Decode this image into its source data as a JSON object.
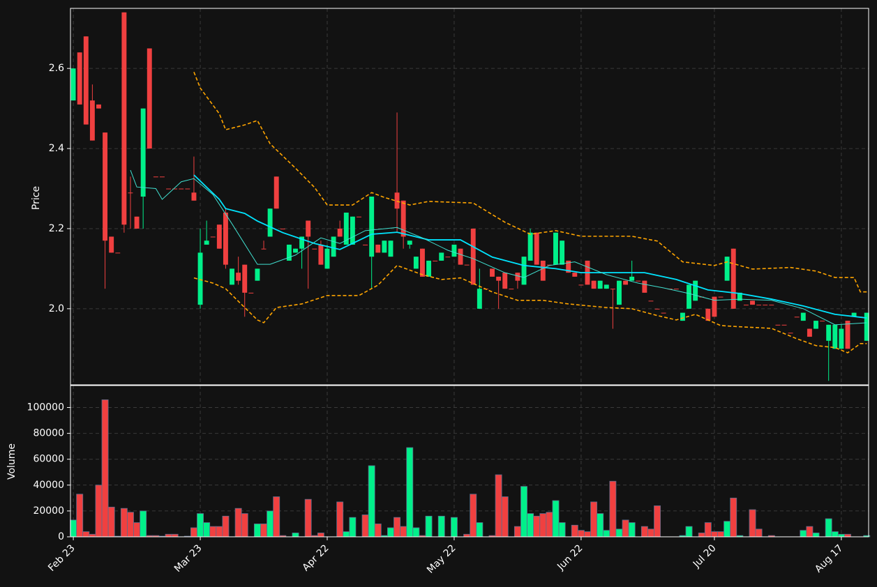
{
  "chart_data": {
    "type": "candlestick",
    "ylabel": "Price",
    "volume_ylabel": "Volume",
    "xlim": [
      -0.45,
      125.3
    ],
    "xticks": [
      {
        "value": 0,
        "label": "Feb 23"
      },
      {
        "value": 20,
        "label": "Mar 23"
      },
      {
        "value": 40,
        "label": "Apr 22"
      },
      {
        "value": 60,
        "label": "May 22"
      },
      {
        "value": 80,
        "label": "Jun 22"
      },
      {
        "value": 101,
        "label": "Jul 20"
      },
      {
        "value": 121,
        "label": "Aug 17"
      }
    ],
    "ylim": [
      1.81,
      2.75
    ],
    "yticks": [
      {
        "value": 2,
        "label": "2.0"
      },
      2.2,
      2.4,
      2.6
    ],
    "volume_ylim": [
      0,
      117000
    ],
    "volume_yticks": [
      0,
      20000,
      40000,
      60000,
      80000,
      100000
    ],
    "grid": true,
    "up_color": "#00f08a",
    "down_color": "#f04040",
    "open": [
      2.52,
      2.64,
      2.68,
      2.52,
      2.51,
      2.44,
      2.18,
      2.14,
      2.74,
      2.29,
      2.23,
      2.28,
      2.65,
      2.33,
      2.33,
      2.3,
      2.3,
      2.3,
      2.3,
      2.29,
      2.01,
      2.16,
      2.18,
      2.21,
      2.24,
      2.06,
      2.09,
      2.11,
      2.04,
      2.07,
      2.15,
      2.18,
      2.33,
      2.2,
      2.12,
      2.14,
      2.15,
      2.22,
      2.15,
      2.16,
      2.1,
      2.13,
      2.2,
      2.16,
      2.16,
      2.23,
      2.16,
      2.13,
      2.16,
      2.14,
      2.13,
      2.29,
      2.27,
      2.16,
      2.1,
      2.15,
      2.08,
      2.12,
      2.12,
      2.13,
      2.13,
      2.15,
      2.11,
      2.2,
      2.0,
      2.05,
      2.1,
      2.08,
      2.09,
      2.05,
      2.09,
      2.06,
      2.12,
      2.19,
      2.12,
      2.11,
      2.11,
      2.11,
      2.12,
      2.09,
      2.06,
      2.12,
      2.07,
      2.05,
      2.05,
      2.05,
      2.01,
      2.07,
      2.07,
      2.07,
      2.07,
      2.02,
      2.0,
      1.99,
      2.05,
      2.05,
      1.97,
      2.0,
      2.02,
      2.03,
      2.0,
      2.03,
      2.03,
      2.07,
      2.15,
      2.02,
      2.01,
      2.02,
      2.01,
      2.01,
      2.01,
      1.96,
      1.96,
      1.94,
      1.98,
      1.97,
      1.95,
      1.95,
      1.97,
      1.92,
      1.9,
      1.9,
      1.97,
      1.98,
      1.98,
      1.92
    ],
    "high": [
      2.6,
      2.64,
      2.68,
      2.56,
      2.51,
      2.44,
      2.18,
      2.14,
      2.74,
      2.33,
      2.23,
      2.5,
      2.65,
      2.33,
      2.33,
      2.3,
      2.3,
      2.3,
      2.3,
      2.38,
      2.2,
      2.22,
      2.18,
      2.21,
      2.25,
      2.1,
      2.13,
      2.11,
      2.04,
      2.1,
      2.17,
      2.25,
      2.33,
      2.2,
      2.16,
      2.15,
      2.18,
      2.22,
      2.15,
      2.17,
      2.16,
      2.18,
      2.22,
      2.24,
      2.23,
      2.23,
      2.16,
      2.28,
      2.16,
      2.17,
      2.17,
      2.49,
      2.27,
      2.17,
      2.13,
      2.15,
      2.12,
      2.12,
      2.14,
      2.13,
      2.16,
      2.15,
      2.11,
      2.2,
      2.1,
      2.05,
      2.1,
      2.08,
      2.09,
      2.05,
      2.09,
      2.13,
      2.2,
      2.19,
      2.12,
      2.11,
      2.19,
      2.17,
      2.12,
      2.09,
      2.06,
      2.12,
      2.07,
      2.07,
      2.06,
      2.05,
      2.07,
      2.07,
      2.12,
      2.07,
      2.07,
      2.02,
      2.0,
      1.99,
      2.05,
      2.05,
      1.99,
      2.06,
      2.07,
      2.03,
      2.0,
      2.03,
      2.03,
      2.13,
      2.15,
      2.04,
      2.01,
      2.02,
      2.01,
      2.01,
      2.01,
      1.96,
      1.96,
      1.94,
      1.98,
      1.99,
      1.95,
      1.97,
      1.97,
      1.96,
      1.96,
      1.96,
      1.97,
      1.99,
      1.98,
      1.99
    ],
    "low": [
      2.52,
      2.51,
      2.46,
      2.42,
      2.5,
      2.05,
      2.14,
      2.14,
      2.19,
      2.2,
      2.2,
      2.2,
      2.4,
      2.33,
      2.33,
      2.3,
      2.3,
      2.3,
      2.3,
      2.27,
      2.0,
      2.16,
      2.18,
      2.15,
      2.1,
      2.06,
      2.06,
      1.98,
      2.04,
      2.07,
      2.15,
      2.18,
      2.25,
      2.2,
      2.12,
      2.14,
      2.1,
      2.05,
      2.15,
      2.11,
      2.1,
      2.13,
      2.18,
      2.16,
      2.16,
      2.23,
      2.16,
      2.05,
      2.14,
      2.14,
      2.13,
      2.19,
      2.15,
      2.15,
      2.1,
      2.08,
      2.08,
      2.12,
      2.12,
      2.13,
      2.13,
      2.11,
      2.11,
      2.06,
      2.0,
      2.05,
      2.08,
      2.0,
      2.05,
      2.05,
      2.05,
      2.06,
      2.12,
      2.11,
      2.07,
      2.11,
      2.11,
      2.11,
      2.09,
      2.08,
      2.06,
      2.06,
      2.05,
      2.05,
      2.05,
      1.95,
      2.01,
      2.06,
      2.07,
      2.07,
      2.04,
      2.02,
      2.0,
      1.99,
      2.05,
      2.05,
      1.97,
      2.0,
      2.02,
      2.03,
      1.97,
      1.98,
      2.03,
      2.07,
      2.0,
      2.02,
      2.01,
      2.01,
      2.01,
      2.01,
      2.01,
      1.96,
      1.96,
      1.94,
      1.98,
      1.97,
      1.93,
      1.95,
      1.97,
      1.82,
      1.9,
      1.9,
      1.9,
      1.98,
      1.98,
      1.92
    ],
    "close": [
      2.6,
      2.51,
      2.46,
      2.42,
      2.5,
      2.17,
      2.14,
      2.14,
      2.21,
      2.29,
      2.2,
      2.5,
      2.4,
      2.33,
      2.33,
      2.3,
      2.3,
      2.3,
      2.3,
      2.27,
      2.14,
      2.17,
      2.18,
      2.15,
      2.11,
      2.1,
      2.07,
      2.04,
      2.04,
      2.1,
      2.15,
      2.25,
      2.25,
      2.2,
      2.16,
      2.15,
      2.18,
      2.18,
      2.15,
      2.11,
      2.15,
      2.18,
      2.18,
      2.24,
      2.23,
      2.23,
      2.16,
      2.28,
      2.14,
      2.17,
      2.17,
      2.25,
      2.18,
      2.17,
      2.13,
      2.08,
      2.12,
      2.12,
      2.14,
      2.13,
      2.16,
      2.11,
      2.11,
      2.06,
      2.05,
      2.05,
      2.08,
      2.07,
      2.05,
      2.05,
      2.07,
      2.13,
      2.19,
      2.11,
      2.07,
      2.11,
      2.19,
      2.17,
      2.09,
      2.08,
      2.06,
      2.06,
      2.05,
      2.07,
      2.06,
      2.05,
      2.07,
      2.06,
      2.08,
      2.07,
      2.04,
      2.02,
      2.0,
      1.99,
      2.05,
      2.05,
      1.99,
      2.06,
      2.07,
      2.03,
      1.97,
      1.98,
      2.03,
      2.13,
      2.0,
      2.04,
      2.01,
      2.01,
      2.01,
      2.01,
      2.01,
      1.96,
      1.96,
      1.94,
      1.98,
      1.99,
      1.93,
      1.97,
      1.97,
      1.96,
      1.96,
      1.95,
      1.9,
      1.99,
      1.98,
      1.99
    ],
    "volume": [
      13000,
      33000,
      4000,
      2000,
      40000,
      106000,
      23000,
      500,
      22000,
      19000,
      11000,
      20000,
      1000,
      1000,
      500,
      2000,
      2000,
      0,
      500,
      7000,
      18000,
      11000,
      8000,
      8000,
      16000,
      0,
      22000,
      18000,
      0,
      10000,
      10000,
      20000,
      31000,
      1000,
      0,
      3000,
      0,
      29000,
      1000,
      3000,
      0,
      0,
      27000,
      4000,
      15000,
      0,
      17000,
      55000,
      10000,
      1000,
      7000,
      15000,
      8000,
      69000,
      7000,
      1000,
      16000,
      0,
      16000,
      0,
      15000,
      0,
      2000,
      33000,
      11000,
      0,
      1000,
      48000,
      31000,
      0,
      8000,
      39000,
      18000,
      16000,
      18000,
      19000,
      28000,
      11000,
      0,
      9000,
      5000,
      4000,
      27000,
      18000,
      5000,
      43000,
      6000,
      13000,
      11000,
      0,
      8000,
      6000,
      24000,
      0,
      0,
      0,
      1000,
      8000,
      0,
      3000,
      11000,
      4000,
      4000,
      12000,
      30000,
      1000,
      0,
      21000,
      6000,
      0,
      1000,
      0,
      0,
      0,
      0,
      5000,
      8000,
      3000,
      0,
      14000,
      4000,
      2000,
      2000,
      0,
      0,
      1000
    ],
    "lines": [
      {
        "color": "#00e5ff",
        "style": "solid",
        "x": [
          19,
          23,
          24,
          27,
          29,
          33,
          38,
          42,
          47,
          51,
          56,
          61,
          66,
          71,
          76,
          80,
          85,
          90,
          95,
          100,
          105,
          110,
          115,
          120,
          125
        ],
        "values": [
          2.334,
          2.273,
          2.25,
          2.238,
          2.219,
          2.19,
          2.163,
          2.148,
          2.186,
          2.191,
          2.172,
          2.172,
          2.129,
          2.108,
          2.1,
          2.09,
          2.09,
          2.09,
          2.073,
          2.047,
          2.038,
          2.024,
          2.007,
          1.986,
          1.977
        ]
      },
      {
        "color": "#40e0d0",
        "style": "solid",
        "x": [
          9,
          10,
          13,
          14,
          17,
          19,
          22,
          25,
          29,
          31,
          35,
          39,
          42,
          46,
          51,
          55,
          59,
          63,
          68,
          71,
          75,
          79,
          84,
          89,
          93,
          97,
          101,
          105,
          110,
          115,
          120,
          125
        ],
        "values": [
          2.346,
          2.304,
          2.3,
          2.273,
          2.317,
          2.325,
          2.285,
          2.212,
          2.111,
          2.111,
          2.134,
          2.177,
          2.163,
          2.195,
          2.203,
          2.177,
          2.146,
          2.125,
          2.09,
          2.078,
          2.108,
          2.117,
          2.085,
          2.064,
          2.052,
          2.038,
          2.021,
          2.024,
          2.021,
          2.0,
          1.96,
          1.965
        ]
      },
      {
        "color": "#ffa500",
        "style": "dashed",
        "x": [
          19,
          20,
          23,
          24,
          27,
          29,
          31,
          35,
          38,
          40,
          44,
          47,
          49,
          53,
          56,
          63,
          68,
          72,
          76,
          80,
          88,
          92,
          96,
          101,
          103,
          107,
          113,
          117,
          120,
          123,
          124,
          125
        ],
        "values": [
          2.591,
          2.551,
          2.487,
          2.447,
          2.459,
          2.47,
          2.412,
          2.351,
          2.303,
          2.259,
          2.259,
          2.29,
          2.278,
          2.259,
          2.268,
          2.264,
          2.216,
          2.186,
          2.195,
          2.181,
          2.181,
          2.169,
          2.117,
          2.108,
          2.117,
          2.099,
          2.103,
          2.094,
          2.078,
          2.078,
          2.042,
          2.042
        ]
      },
      {
        "color": "#ffa500",
        "style": "dashed",
        "x": [
          19,
          22,
          24,
          27,
          29,
          30,
          32,
          36,
          40,
          45,
          48,
          51,
          55,
          58,
          61,
          66,
          70,
          74,
          78,
          84,
          88,
          92,
          95,
          98,
          102,
          105,
          110,
          114,
          117,
          120,
          122,
          124,
          125
        ],
        "values": [
          2.077,
          2.064,
          2.05,
          2.003,
          1.972,
          1.965,
          2.003,
          2.012,
          2.033,
          2.033,
          2.059,
          2.108,
          2.085,
          2.073,
          2.077,
          2.042,
          2.021,
          2.021,
          2.012,
          2.003,
          2.0,
          1.983,
          1.972,
          1.986,
          1.958,
          1.955,
          1.951,
          1.925,
          1.908,
          1.903,
          1.89,
          1.913,
          1.913
        ]
      }
    ]
  }
}
